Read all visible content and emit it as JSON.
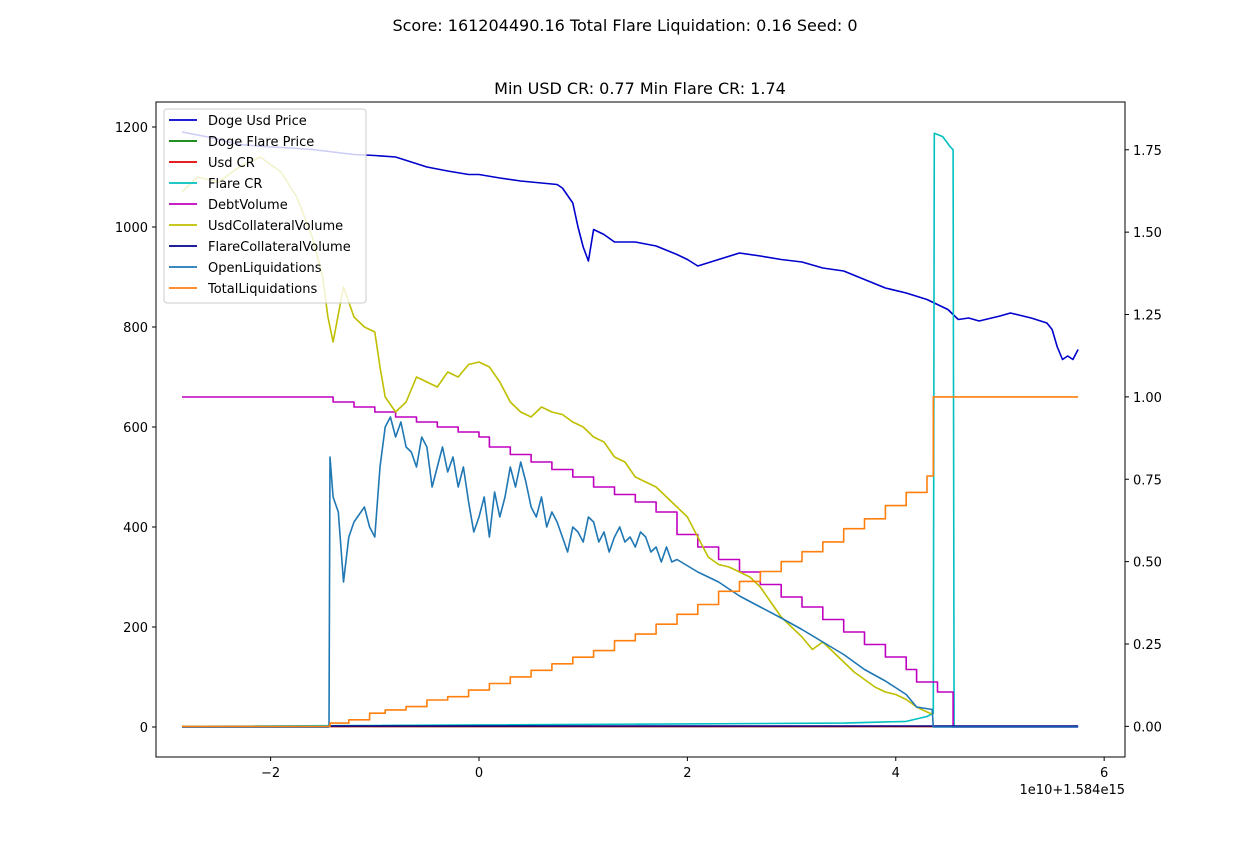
{
  "chart_data": {
    "type": "line",
    "suptitle": "Score: 161204490.16 Total Flare Liquidation: 0.16 Seed: 0",
    "title": "Min USD CR: 0.77 Min Flare CR: 1.74",
    "x_offset_label": "1e10+1.584e15",
    "xlim": [
      -3.1,
      6.2
    ],
    "ylim_left": [
      -60,
      1250
    ],
    "ylim_right": [
      -0.093,
      1.895
    ],
    "x_ticks": [
      -2,
      0,
      2,
      4,
      6
    ],
    "x_tick_labels": [
      "−2",
      "0",
      "2",
      "4",
      "6"
    ],
    "y_left_ticks": [
      0,
      200,
      400,
      600,
      800,
      1000,
      1200
    ],
    "y_left_tick_labels": [
      "0",
      "200",
      "400",
      "600",
      "800",
      "1000",
      "1200"
    ],
    "y_right_ticks": [
      0,
      0.25,
      0.5,
      0.75,
      1.0,
      1.25,
      1.5,
      1.75
    ],
    "y_right_tick_labels": [
      "0.00",
      "0.25",
      "0.50",
      "0.75",
      "1.00",
      "1.25",
      "1.50",
      "1.75"
    ],
    "legend_position": "upper left",
    "series": [
      {
        "name": "Doge Usd Price",
        "color": "#0000cd",
        "axis": "left",
        "step": false,
        "points": [
          [
            -2.85,
            1190
          ],
          [
            -2.6,
            1180
          ],
          [
            -2.3,
            1165
          ],
          [
            -2.0,
            1160
          ],
          [
            -1.8,
            1158
          ],
          [
            -1.6,
            1155
          ],
          [
            -1.4,
            1150
          ],
          [
            -1.2,
            1145
          ],
          [
            -1.0,
            1143
          ],
          [
            -0.8,
            1140
          ],
          [
            -0.65,
            1130
          ],
          [
            -0.5,
            1120
          ],
          [
            -0.3,
            1112
          ],
          [
            -0.1,
            1105
          ],
          [
            0.0,
            1105
          ],
          [
            0.2,
            1098
          ],
          [
            0.4,
            1092
          ],
          [
            0.6,
            1088
          ],
          [
            0.75,
            1085
          ],
          [
            0.8,
            1078
          ],
          [
            0.9,
            1048
          ],
          [
            0.95,
            1000
          ],
          [
            1.0,
            960
          ],
          [
            1.05,
            932
          ],
          [
            1.1,
            995
          ],
          [
            1.2,
            985
          ],
          [
            1.3,
            970
          ],
          [
            1.5,
            970
          ],
          [
            1.7,
            962
          ],
          [
            1.9,
            945
          ],
          [
            2.0,
            935
          ],
          [
            2.1,
            922
          ],
          [
            2.3,
            935
          ],
          [
            2.5,
            948
          ],
          [
            2.7,
            942
          ],
          [
            2.9,
            935
          ],
          [
            3.1,
            930
          ],
          [
            3.3,
            918
          ],
          [
            3.5,
            912
          ],
          [
            3.7,
            895
          ],
          [
            3.9,
            878
          ],
          [
            4.1,
            868
          ],
          [
            4.3,
            855
          ],
          [
            4.5,
            835
          ],
          [
            4.6,
            815
          ],
          [
            4.7,
            818
          ],
          [
            4.8,
            812
          ],
          [
            5.0,
            822
          ],
          [
            5.1,
            828
          ],
          [
            5.3,
            818
          ],
          [
            5.45,
            808
          ],
          [
            5.5,
            795
          ],
          [
            5.55,
            760
          ],
          [
            5.6,
            735
          ],
          [
            5.65,
            742
          ],
          [
            5.7,
            735
          ],
          [
            5.75,
            755
          ]
        ]
      },
      {
        "name": "Doge Flare Price",
        "color": "#008000",
        "axis": "right",
        "step": false,
        "points": [
          [
            -2.85,
            0.0
          ],
          [
            5.75,
            0.0
          ]
        ]
      },
      {
        "name": "Usd CR",
        "color": "#e00000",
        "axis": "right",
        "step": false,
        "points": [
          [
            -2.85,
            0.0
          ],
          [
            4.36,
            0.0
          ]
        ]
      },
      {
        "name": "Flare CR",
        "color": "#00c0c0",
        "axis": "right",
        "step": false,
        "points": [
          [
            -2.85,
            0.0
          ],
          [
            3.5,
            0.01
          ],
          [
            4.1,
            0.015
          ],
          [
            4.3,
            0.03
          ],
          [
            4.36,
            0.04
          ],
          [
            4.37,
            1.8
          ],
          [
            4.45,
            1.79
          ],
          [
            4.52,
            1.76
          ],
          [
            4.55,
            1.75
          ],
          [
            4.56,
            0.0
          ],
          [
            5.75,
            0.0
          ]
        ]
      },
      {
        "name": "DebtVolume",
        "color": "#c000c0",
        "axis": "left",
        "step": true,
        "points": [
          [
            -2.85,
            660
          ],
          [
            -1.4,
            650
          ],
          [
            -1.2,
            640
          ],
          [
            -1.0,
            630
          ],
          [
            -0.8,
            620
          ],
          [
            -0.6,
            610
          ],
          [
            -0.4,
            600
          ],
          [
            -0.2,
            590
          ],
          [
            0.0,
            580
          ],
          [
            0.1,
            560
          ],
          [
            0.3,
            545
          ],
          [
            0.5,
            530
          ],
          [
            0.7,
            515
          ],
          [
            0.9,
            500
          ],
          [
            1.1,
            480
          ],
          [
            1.3,
            465
          ],
          [
            1.5,
            450
          ],
          [
            1.7,
            430
          ],
          [
            1.9,
            385
          ],
          [
            2.1,
            360
          ],
          [
            2.3,
            335
          ],
          [
            2.5,
            310
          ],
          [
            2.7,
            285
          ],
          [
            2.9,
            260
          ],
          [
            3.1,
            240
          ],
          [
            3.3,
            215
          ],
          [
            3.5,
            190
          ],
          [
            3.7,
            165
          ],
          [
            3.9,
            140
          ],
          [
            4.1,
            115
          ],
          [
            4.2,
            90
          ],
          [
            4.4,
            70
          ],
          [
            4.55,
            0
          ],
          [
            5.75,
            0
          ]
        ]
      },
      {
        "name": "UsdCollateralVolume",
        "color": "#bfbf00",
        "axis": "left",
        "step": false,
        "points": [
          [
            -2.85,
            1070
          ],
          [
            -2.7,
            1100
          ],
          [
            -2.5,
            1090
          ],
          [
            -2.3,
            1120
          ],
          [
            -2.1,
            1140
          ],
          [
            -1.9,
            1110
          ],
          [
            -1.75,
            1060
          ],
          [
            -1.6,
            980
          ],
          [
            -1.5,
            900
          ],
          [
            -1.45,
            820
          ],
          [
            -1.4,
            770
          ],
          [
            -1.3,
            880
          ],
          [
            -1.2,
            820
          ],
          [
            -1.1,
            800
          ],
          [
            -1.0,
            790
          ],
          [
            -0.95,
            720
          ],
          [
            -0.9,
            660
          ],
          [
            -0.8,
            630
          ],
          [
            -0.7,
            650
          ],
          [
            -0.6,
            700
          ],
          [
            -0.5,
            690
          ],
          [
            -0.4,
            680
          ],
          [
            -0.3,
            710
          ],
          [
            -0.2,
            700
          ],
          [
            -0.1,
            725
          ],
          [
            0.0,
            730
          ],
          [
            0.1,
            720
          ],
          [
            0.2,
            690
          ],
          [
            0.3,
            650
          ],
          [
            0.4,
            630
          ],
          [
            0.5,
            620
          ],
          [
            0.6,
            640
          ],
          [
            0.7,
            630
          ],
          [
            0.8,
            625
          ],
          [
            0.9,
            610
          ],
          [
            1.0,
            600
          ],
          [
            1.1,
            580
          ],
          [
            1.2,
            570
          ],
          [
            1.3,
            540
          ],
          [
            1.4,
            530
          ],
          [
            1.5,
            500
          ],
          [
            1.6,
            490
          ],
          [
            1.7,
            480
          ],
          [
            1.8,
            460
          ],
          [
            1.9,
            440
          ],
          [
            2.0,
            420
          ],
          [
            2.1,
            380
          ],
          [
            2.2,
            340
          ],
          [
            2.3,
            325
          ],
          [
            2.4,
            320
          ],
          [
            2.5,
            310
          ],
          [
            2.6,
            300
          ],
          [
            2.7,
            280
          ],
          [
            2.8,
            250
          ],
          [
            2.9,
            220
          ],
          [
            3.0,
            200
          ],
          [
            3.1,
            180
          ],
          [
            3.2,
            155
          ],
          [
            3.3,
            170
          ],
          [
            3.4,
            150
          ],
          [
            3.5,
            130
          ],
          [
            3.6,
            110
          ],
          [
            3.7,
            95
          ],
          [
            3.8,
            80
          ],
          [
            3.9,
            70
          ],
          [
            4.0,
            65
          ],
          [
            4.1,
            55
          ],
          [
            4.2,
            40
          ],
          [
            4.3,
            30
          ],
          [
            4.36,
            25
          ]
        ]
      },
      {
        "name": "FlareCollateralVolume",
        "color": "#00008b",
        "axis": "left",
        "step": false,
        "points": [
          [
            -2.85,
            0
          ],
          [
            -1.45,
            0
          ],
          [
            -1.43,
            2
          ],
          [
            5.75,
            2
          ]
        ]
      },
      {
        "name": "OpenLiquidations",
        "color": "#1f77b4",
        "axis": "left",
        "step": false,
        "points": [
          [
            -2.85,
            0
          ],
          [
            -1.44,
            0
          ],
          [
            -1.43,
            540
          ],
          [
            -1.4,
            460
          ],
          [
            -1.35,
            430
          ],
          [
            -1.3,
            290
          ],
          [
            -1.25,
            380
          ],
          [
            -1.2,
            410
          ],
          [
            -1.1,
            440
          ],
          [
            -1.05,
            400
          ],
          [
            -1.0,
            380
          ],
          [
            -0.95,
            520
          ],
          [
            -0.9,
            600
          ],
          [
            -0.85,
            620
          ],
          [
            -0.8,
            580
          ],
          [
            -0.75,
            610
          ],
          [
            -0.7,
            560
          ],
          [
            -0.65,
            550
          ],
          [
            -0.6,
            520
          ],
          [
            -0.55,
            580
          ],
          [
            -0.5,
            560
          ],
          [
            -0.45,
            480
          ],
          [
            -0.4,
            520
          ],
          [
            -0.35,
            560
          ],
          [
            -0.3,
            510
          ],
          [
            -0.25,
            540
          ],
          [
            -0.2,
            480
          ],
          [
            -0.15,
            520
          ],
          [
            -0.1,
            450
          ],
          [
            -0.05,
            390
          ],
          [
            0.0,
            420
          ],
          [
            0.05,
            460
          ],
          [
            0.1,
            380
          ],
          [
            0.15,
            470
          ],
          [
            0.2,
            420
          ],
          [
            0.25,
            460
          ],
          [
            0.3,
            520
          ],
          [
            0.35,
            480
          ],
          [
            0.4,
            530
          ],
          [
            0.45,
            490
          ],
          [
            0.5,
            440
          ],
          [
            0.55,
            420
          ],
          [
            0.6,
            460
          ],
          [
            0.65,
            400
          ],
          [
            0.7,
            430
          ],
          [
            0.75,
            410
          ],
          [
            0.8,
            380
          ],
          [
            0.85,
            350
          ],
          [
            0.9,
            400
          ],
          [
            0.95,
            390
          ],
          [
            1.0,
            370
          ],
          [
            1.05,
            420
          ],
          [
            1.1,
            410
          ],
          [
            1.15,
            370
          ],
          [
            1.2,
            390
          ],
          [
            1.25,
            350
          ],
          [
            1.3,
            380
          ],
          [
            1.35,
            400
          ],
          [
            1.4,
            370
          ],
          [
            1.45,
            380
          ],
          [
            1.5,
            360
          ],
          [
            1.55,
            390
          ],
          [
            1.6,
            380
          ],
          [
            1.65,
            350
          ],
          [
            1.7,
            360
          ],
          [
            1.75,
            330
          ],
          [
            1.8,
            360
          ],
          [
            1.85,
            330
          ],
          [
            1.9,
            335
          ],
          [
            2.1,
            310
          ],
          [
            2.3,
            290
          ],
          [
            2.5,
            262
          ],
          [
            2.7,
            240
          ],
          [
            2.9,
            218
          ],
          [
            3.1,
            195
          ],
          [
            3.3,
            170
          ],
          [
            3.5,
            145
          ],
          [
            3.7,
            115
          ],
          [
            3.9,
            92
          ],
          [
            4.1,
            65
          ],
          [
            4.2,
            40
          ],
          [
            4.35,
            35
          ],
          [
            4.36,
            0
          ],
          [
            5.75,
            0
          ]
        ]
      },
      {
        "name": "TotalLiquidations",
        "color": "#ff7f0e",
        "axis": "right",
        "step": true,
        "points": [
          [
            -2.85,
            0.0
          ],
          [
            -1.45,
            0.0
          ],
          [
            -1.43,
            0.01
          ],
          [
            -1.25,
            0.02
          ],
          [
            -1.05,
            0.04
          ],
          [
            -0.9,
            0.05
          ],
          [
            -0.7,
            0.06
          ],
          [
            -0.5,
            0.08
          ],
          [
            -0.3,
            0.09
          ],
          [
            -0.1,
            0.11
          ],
          [
            0.1,
            0.13
          ],
          [
            0.3,
            0.15
          ],
          [
            0.5,
            0.17
          ],
          [
            0.7,
            0.19
          ],
          [
            0.9,
            0.21
          ],
          [
            1.1,
            0.23
          ],
          [
            1.3,
            0.26
          ],
          [
            1.5,
            0.28
          ],
          [
            1.7,
            0.31
          ],
          [
            1.9,
            0.34
          ],
          [
            2.1,
            0.37
          ],
          [
            2.3,
            0.41
          ],
          [
            2.5,
            0.44
          ],
          [
            2.7,
            0.47
          ],
          [
            2.9,
            0.5
          ],
          [
            3.1,
            0.53
          ],
          [
            3.3,
            0.56
          ],
          [
            3.5,
            0.6
          ],
          [
            3.7,
            0.63
          ],
          [
            3.9,
            0.67
          ],
          [
            4.1,
            0.71
          ],
          [
            4.3,
            0.76
          ],
          [
            4.36,
            1.0
          ],
          [
            5.75,
            1.0
          ]
        ]
      }
    ]
  }
}
